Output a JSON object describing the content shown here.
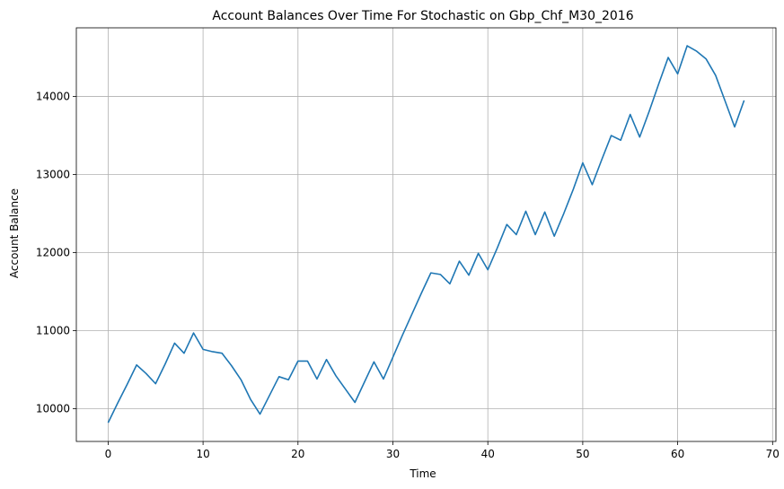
{
  "chart_data": {
    "type": "line",
    "title": "Account Balances Over Time For Stochastic on Gbp_Chf_M30_2016",
    "xlabel": "Time",
    "ylabel": "Account Balance",
    "xlim": [
      -3.35,
      70.35
    ],
    "ylim": [
      9580,
      14880
    ],
    "xticks": [
      0,
      10,
      20,
      30,
      40,
      50,
      60,
      70
    ],
    "yticks": [
      10000,
      11000,
      12000,
      13000,
      14000
    ],
    "grid": true,
    "line_color": "#1f77b4",
    "series": [
      {
        "x": [
          0,
          1,
          2,
          3,
          4,
          5,
          6,
          7,
          8,
          9,
          10,
          11,
          12,
          13,
          14,
          15,
          16,
          17,
          18,
          19,
          20,
          21,
          22,
          23,
          24,
          25,
          26,
          27,
          28,
          29,
          30,
          31,
          32,
          33,
          34,
          35,
          36,
          37,
          38,
          39,
          40,
          41,
          42,
          43,
          44,
          45,
          46,
          47,
          48,
          49,
          50,
          51,
          52,
          53,
          54,
          55,
          56,
          57,
          58,
          59,
          60,
          61,
          62,
          63,
          64,
          65,
          66,
          67
        ],
        "values": [
          9820,
          10070,
          10310,
          10560,
          10450,
          10320,
          10570,
          10840,
          10710,
          10970,
          10760,
          10730,
          10710,
          10550,
          10370,
          10120,
          9930,
          10170,
          10410,
          10370,
          10610,
          10610,
          10380,
          10630,
          10420,
          10250,
          10080,
          10340,
          10600,
          10380,
          10660,
          10940,
          11210,
          11480,
          11740,
          11720,
          11600,
          11890,
          11710,
          11990,
          11780,
          12060,
          12360,
          12230,
          12530,
          12230,
          12520,
          12210,
          12500,
          12810,
          13150,
          12870,
          13190,
          13500,
          13440,
          13770,
          13480,
          13810,
          14160,
          14500,
          14290,
          14650,
          14580,
          14480,
          14270,
          13940,
          13610,
          13950
        ]
      }
    ]
  }
}
